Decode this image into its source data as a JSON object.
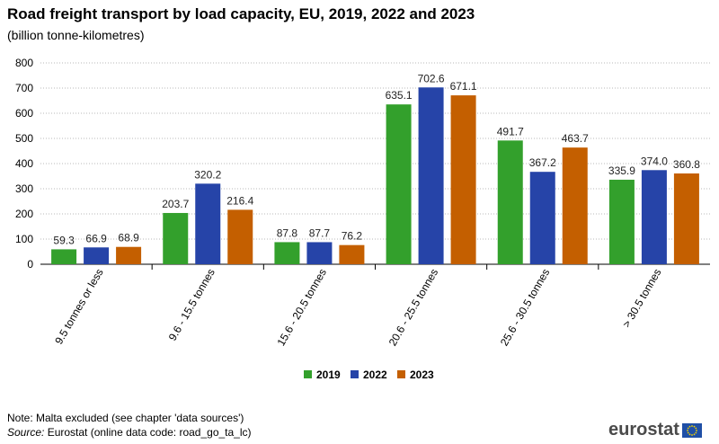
{
  "title": "Road freight transport by load capacity, EU, 2019, 2022 and 2023",
  "subtitle": "(billion  tonne-kilometres)",
  "chart_data": {
    "type": "bar",
    "categories": [
      "9.5 tonnes or less",
      "9.6 - 15.5 tonnes",
      "15.6 - 20.5 tonnes",
      "20.6 - 25.5 tonnes",
      "25.6 - 30.5 tonnes",
      "> 30.5 tonnes"
    ],
    "series": [
      {
        "name": "2019",
        "color": "#33a02c",
        "values": [
          59.3,
          203.7,
          87.8,
          635.1,
          491.7,
          335.9
        ],
        "labels": [
          "59.3",
          "203.7",
          "87.8",
          "635.1",
          "491.7",
          "335.9"
        ]
      },
      {
        "name": "2022",
        "color": "#2644a8",
        "values": [
          66.9,
          320.2,
          87.7,
          702.6,
          367.2,
          374.0
        ],
        "labels": [
          "66.9",
          "320.2",
          "87.7",
          "702.6",
          "367.2",
          "374.0"
        ]
      },
      {
        "name": "2023",
        "color": "#c45f00",
        "values": [
          68.9,
          216.4,
          76.2,
          671.1,
          463.7,
          360.8
        ],
        "labels": [
          "68.9",
          "216.4",
          "76.2",
          "671.1",
          "463.7",
          "360.8"
        ]
      }
    ],
    "ylim": [
      0,
      800
    ],
    "yticks": [
      0,
      100,
      200,
      300,
      400,
      500,
      600,
      700,
      800
    ],
    "grid": true,
    "legend": "bottom-center"
  },
  "footer": {
    "note": "Note: Malta excluded (see chapter 'data sources')",
    "source_label": "Source:",
    "source_text": " Eurostat (online data code: road_go_ta_lc)"
  },
  "logo": {
    "text": "eurostat",
    "flag_color": "#1f4fa6",
    "star_color": "#f2d200"
  }
}
